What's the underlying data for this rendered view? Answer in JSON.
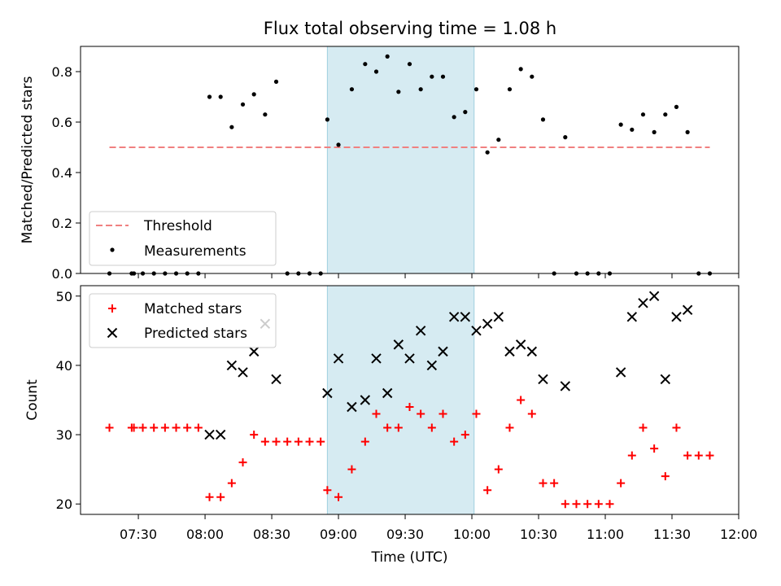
{
  "chart_data": [
    {
      "type": "scatter",
      "title": "Flux total observing time = 1.08 h",
      "ylabel": "Matched/Predicted stars",
      "xlabel": "",
      "xlim": [
        "07:04",
        "12:00"
      ],
      "ylim": [
        0,
        0.9
      ],
      "yticks": [
        0.0,
        0.2,
        0.4,
        0.6,
        0.8
      ],
      "ytick_labels": [
        "0.0",
        "0.2",
        "0.4",
        "0.6",
        "0.8"
      ],
      "shaded_span": {
        "start": "08:55",
        "end": "10:01",
        "color": "#add8e6"
      },
      "legend_position": "lower-left",
      "threshold": {
        "name": "Threshold",
        "y": 0.5,
        "x_start": "07:17",
        "x_end": "11:47",
        "color": "#f08080",
        "style": "dashed"
      },
      "series": [
        {
          "name": "Measurements",
          "color": "#000000",
          "marker": "dot",
          "points": [
            [
              "07:17",
              0.0
            ],
            [
              "07:27",
              0.0
            ],
            [
              "07:28",
              0.0
            ],
            [
              "07:32",
              0.0
            ],
            [
              "07:37",
              0.0
            ],
            [
              "07:42",
              0.0
            ],
            [
              "07:47",
              0.0
            ],
            [
              "07:52",
              0.0
            ],
            [
              "07:57",
              0.0
            ],
            [
              "08:02",
              0.7
            ],
            [
              "08:07",
              0.7
            ],
            [
              "08:12",
              0.58
            ],
            [
              "08:17",
              0.67
            ],
            [
              "08:22",
              0.71
            ],
            [
              "08:27",
              0.63
            ],
            [
              "08:32",
              0.76
            ],
            [
              "08:37",
              0.0
            ],
            [
              "08:42",
              0.0
            ],
            [
              "08:47",
              0.0
            ],
            [
              "08:52",
              0.0
            ],
            [
              "08:55",
              0.61
            ],
            [
              "09:00",
              0.51
            ],
            [
              "09:06",
              0.73
            ],
            [
              "09:12",
              0.83
            ],
            [
              "09:17",
              0.8
            ],
            [
              "09:22",
              0.86
            ],
            [
              "09:27",
              0.72
            ],
            [
              "09:32",
              0.83
            ],
            [
              "09:37",
              0.73
            ],
            [
              "09:42",
              0.78
            ],
            [
              "09:47",
              0.78
            ],
            [
              "09:52",
              0.62
            ],
            [
              "09:57",
              0.64
            ],
            [
              "10:02",
              0.73
            ],
            [
              "10:07",
              0.48
            ],
            [
              "10:12",
              0.53
            ],
            [
              "10:17",
              0.73
            ],
            [
              "10:22",
              0.81
            ],
            [
              "10:27",
              0.78
            ],
            [
              "10:32",
              0.61
            ],
            [
              "10:37",
              0.0
            ],
            [
              "10:42",
              0.54
            ],
            [
              "10:47",
              0.0
            ],
            [
              "10:52",
              0.0
            ],
            [
              "10:57",
              0.0
            ],
            [
              "11:02",
              0.0
            ],
            [
              "11:07",
              0.59
            ],
            [
              "11:12",
              0.57
            ],
            [
              "11:17",
              0.63
            ],
            [
              "11:22",
              0.56
            ],
            [
              "11:27",
              0.63
            ],
            [
              "11:32",
              0.66
            ],
            [
              "11:37",
              0.56
            ],
            [
              "11:42",
              0.0
            ],
            [
              "11:47",
              0.0
            ]
          ]
        }
      ]
    },
    {
      "type": "scatter",
      "title": "",
      "ylabel": "Count",
      "xlabel": "Time (UTC)",
      "xlim": [
        "07:04",
        "12:00"
      ],
      "ylim": [
        18.5,
        51.5
      ],
      "yticks": [
        20,
        30,
        40,
        50
      ],
      "ytick_labels": [
        "20",
        "30",
        "40",
        "50"
      ],
      "xticks": [
        "07:30",
        "08:00",
        "08:30",
        "09:00",
        "09:30",
        "10:00",
        "10:30",
        "11:00",
        "11:30",
        "12:00"
      ],
      "xtick_labels": [
        "07:30",
        "08:00",
        "08:30",
        "09:00",
        "09:30",
        "10:00",
        "10:30",
        "11:00",
        "11:30",
        "12:00"
      ],
      "shaded_span": {
        "start": "08:55",
        "end": "10:01",
        "color": "#add8e6"
      },
      "legend_position": "upper-left",
      "series": [
        {
          "name": "Matched stars",
          "color": "#ff0000",
          "marker": "plus",
          "points": [
            [
              "07:17",
              31
            ],
            [
              "07:27",
              31
            ],
            [
              "07:28",
              31
            ],
            [
              "07:32",
              31
            ],
            [
              "07:37",
              31
            ],
            [
              "07:42",
              31
            ],
            [
              "07:47",
              31
            ],
            [
              "07:52",
              31
            ],
            [
              "07:57",
              31
            ],
            [
              "08:02",
              21
            ],
            [
              "08:07",
              21
            ],
            [
              "08:12",
              23
            ],
            [
              "08:17",
              26
            ],
            [
              "08:22",
              30
            ],
            [
              "08:27",
              29
            ],
            [
              "08:32",
              29
            ],
            [
              "08:37",
              29
            ],
            [
              "08:42",
              29
            ],
            [
              "08:47",
              29
            ],
            [
              "08:52",
              29
            ],
            [
              "08:55",
              22
            ],
            [
              "09:00",
              21
            ],
            [
              "09:06",
              25
            ],
            [
              "09:12",
              29
            ],
            [
              "09:17",
              33
            ],
            [
              "09:22",
              31
            ],
            [
              "09:27",
              31
            ],
            [
              "09:32",
              34
            ],
            [
              "09:37",
              33
            ],
            [
              "09:42",
              31
            ],
            [
              "09:47",
              33
            ],
            [
              "09:52",
              29
            ],
            [
              "09:57",
              30
            ],
            [
              "10:02",
              33
            ],
            [
              "10:07",
              22
            ],
            [
              "10:12",
              25
            ],
            [
              "10:17",
              31
            ],
            [
              "10:22",
              35
            ],
            [
              "10:27",
              33
            ],
            [
              "10:32",
              23
            ],
            [
              "10:37",
              23
            ],
            [
              "10:42",
              20
            ],
            [
              "10:47",
              20
            ],
            [
              "10:52",
              20
            ],
            [
              "10:57",
              20
            ],
            [
              "11:02",
              20
            ],
            [
              "11:07",
              23
            ],
            [
              "11:12",
              27
            ],
            [
              "11:17",
              31
            ],
            [
              "11:22",
              28
            ],
            [
              "11:27",
              24
            ],
            [
              "11:32",
              31
            ],
            [
              "11:37",
              27
            ],
            [
              "11:42",
              27
            ],
            [
              "11:47",
              27
            ]
          ]
        },
        {
          "name": "Predicted stars",
          "color": "#000000",
          "marker": "x",
          "points": [
            [
              "08:02",
              30
            ],
            [
              "08:07",
              30
            ],
            [
              "08:12",
              40
            ],
            [
              "08:17",
              39
            ],
            [
              "08:22",
              42
            ],
            [
              "08:27",
              46
            ],
            [
              "08:32",
              38
            ],
            [
              "08:55",
              36
            ],
            [
              "09:00",
              41
            ],
            [
              "09:06",
              34
            ],
            [
              "09:12",
              35
            ],
            [
              "09:17",
              41
            ],
            [
              "09:22",
              36
            ],
            [
              "09:27",
              43
            ],
            [
              "09:32",
              41
            ],
            [
              "09:37",
              45
            ],
            [
              "09:42",
              40
            ],
            [
              "09:47",
              42
            ],
            [
              "09:52",
              47
            ],
            [
              "09:57",
              47
            ],
            [
              "10:02",
              45
            ],
            [
              "10:07",
              46
            ],
            [
              "10:12",
              47
            ],
            [
              "10:17",
              42
            ],
            [
              "10:22",
              43
            ],
            [
              "10:27",
              42
            ],
            [
              "10:32",
              38
            ],
            [
              "10:42",
              37
            ],
            [
              "11:07",
              39
            ],
            [
              "11:12",
              47
            ],
            [
              "11:17",
              49
            ],
            [
              "11:22",
              50
            ],
            [
              "11:27",
              38
            ],
            [
              "11:32",
              47
            ],
            [
              "11:37",
              48
            ]
          ]
        }
      ]
    }
  ]
}
